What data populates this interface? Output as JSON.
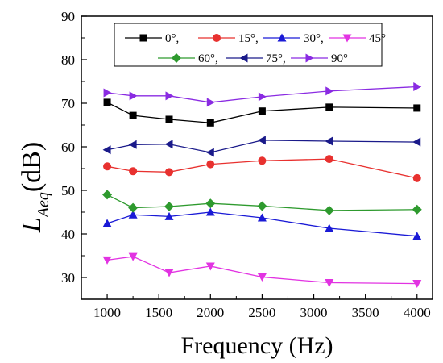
{
  "chart_data": {
    "type": "line",
    "title": "",
    "xlabel": "Frequency (Hz)",
    "ylabel_main": "L",
    "ylabel_sub": "Aeq",
    "ylabel_unit": "(dB)",
    "xlim": [
      750,
      4150
    ],
    "ylim": [
      25,
      90
    ],
    "xticks": [
      1000,
      1500,
      2000,
      2500,
      3000,
      3500,
      4000
    ],
    "yticks": [
      30,
      40,
      50,
      60,
      70,
      80,
      90
    ],
    "grid": false,
    "legend_position": "top-right",
    "x": [
      1000,
      1250,
      1600,
      2000,
      2500,
      3150,
      4000
    ],
    "series": [
      {
        "name": "0°,",
        "color": "#000000",
        "marker": "square",
        "values": [
          70.2,
          67.2,
          66.3,
          65.5,
          68.2,
          69.1,
          68.9
        ]
      },
      {
        "name": "15°,",
        "color": "#e8312f",
        "marker": "circle",
        "values": [
          55.5,
          54.4,
          54.2,
          56.0,
          56.8,
          57.2,
          52.8
        ]
      },
      {
        "name": "30°,",
        "color": "#1a1ad6",
        "marker": "triangle-up",
        "values": [
          42.4,
          44.4,
          44.0,
          45.0,
          43.7,
          41.3,
          39.5
        ]
      },
      {
        "name": "45°",
        "color": "#e233e2",
        "marker": "triangle-down",
        "values": [
          34.0,
          34.8,
          31.1,
          32.6,
          30.1,
          28.8,
          28.6
        ]
      },
      {
        "name": "60°,",
        "color": "#2e9a2e",
        "marker": "diamond",
        "values": [
          49.0,
          46.0,
          46.3,
          47.0,
          46.4,
          45.4,
          45.6
        ]
      },
      {
        "name": "75°,",
        "color": "#1a1a8a",
        "marker": "triangle-left",
        "values": [
          59.3,
          60.5,
          60.6,
          58.7,
          61.5,
          61.3,
          61.1
        ]
      },
      {
        "name": "90°",
        "color": "#8a2be2",
        "marker": "triangle-right",
        "values": [
          72.4,
          71.7,
          71.7,
          70.2,
          71.5,
          72.8,
          73.8
        ]
      }
    ]
  }
}
